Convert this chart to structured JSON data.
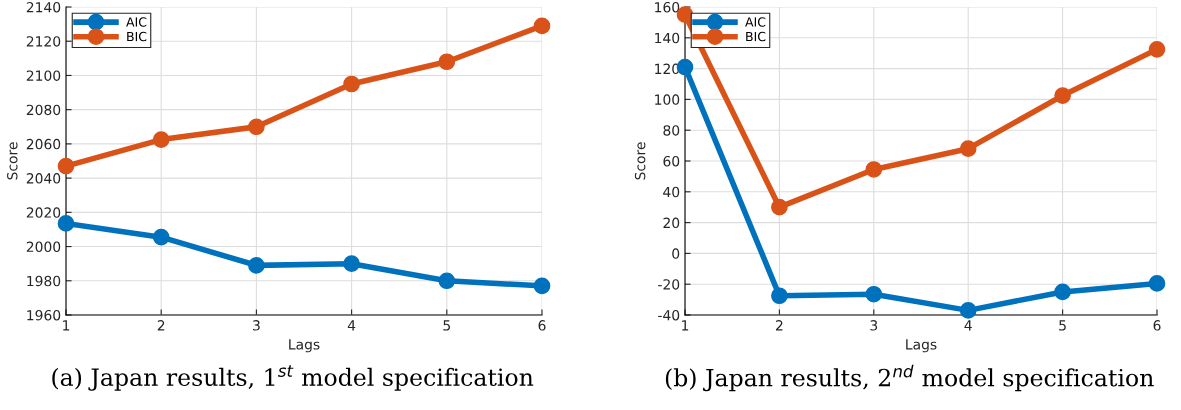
{
  "chart_data": [
    {
      "type": "line",
      "title": "(a) Japan results, 1$^{st}$ model specification",
      "xlabel": "Lags",
      "ylabel": "Score",
      "x": [
        1,
        2,
        3,
        4,
        5,
        6
      ],
      "xlim": [
        1,
        6
      ],
      "xticks": [
        1,
        2,
        3,
        4,
        5,
        6
      ],
      "ylim": [
        1960,
        2140
      ],
      "yticks": [
        1960,
        1980,
        2000,
        2020,
        2040,
        2060,
        2080,
        2100,
        2120,
        2140
      ],
      "grid": true,
      "legend": "top left",
      "marker": "circle",
      "line_style": "solid",
      "series": [
        {
          "name": "AIC",
          "color": "#0072bd",
          "values": [
            2013.5,
            2005.5,
            1989,
            1990,
            1980,
            1977
          ]
        },
        {
          "name": "BIC",
          "color": "#d95319",
          "values": [
            2047,
            2062.5,
            2070,
            2095,
            2108,
            2129
          ]
        }
      ]
    },
    {
      "type": "line",
      "title": "(b) Japan results, 2$^{nd}$ model specification",
      "xlabel": "Lags",
      "ylabel": "Score",
      "x": [
        1,
        2,
        3,
        4,
        5,
        6
      ],
      "xlim": [
        1,
        6
      ],
      "xticks": [
        1,
        2,
        3,
        4,
        5,
        6
      ],
      "ylim": [
        -40,
        160
      ],
      "yticks": [
        -40,
        -20,
        0,
        20,
        40,
        60,
        80,
        100,
        120,
        140,
        160
      ],
      "grid": true,
      "legend": "top left",
      "marker": "circle",
      "line_style": "solid",
      "series": [
        {
          "name": "AIC",
          "color": "#0072bd",
          "values": [
            121,
            -27.5,
            -26.5,
            -37,
            -25,
            -19.5
          ]
        },
        {
          "name": "BIC",
          "color": "#d95319",
          "values": [
            155,
            30,
            54.5,
            68,
            102.5,
            132.5
          ]
        }
      ]
    }
  ]
}
